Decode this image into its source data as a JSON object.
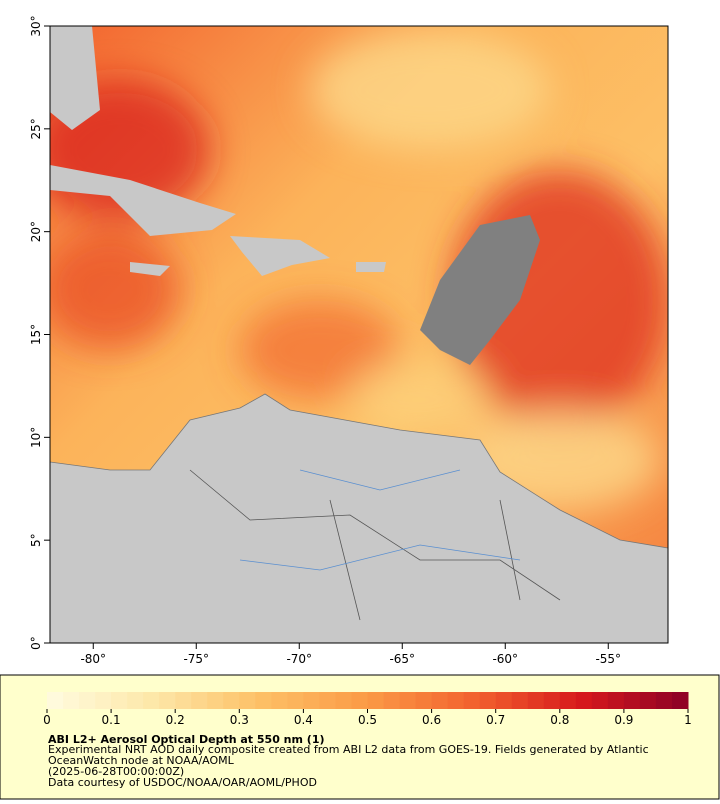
{
  "map": {
    "xlim": [
      -82.1,
      -52.1
    ],
    "ylim": [
      0,
      30
    ],
    "xticks": [
      {
        "value": -80,
        "label": "-80°"
      },
      {
        "value": -75,
        "label": "-75°"
      },
      {
        "value": -70,
        "label": "-70°"
      },
      {
        "value": -65,
        "label": "-65°"
      },
      {
        "value": -60,
        "label": "-60°"
      },
      {
        "value": -55,
        "label": "-55°"
      }
    ],
    "yticks": [
      {
        "value": 0,
        "label": "0°"
      },
      {
        "value": 5,
        "label": "5°"
      },
      {
        "value": 10,
        "label": "10°"
      },
      {
        "value": 15,
        "label": "15°"
      },
      {
        "value": 20,
        "label": "20°"
      },
      {
        "value": 25,
        "label": "25°"
      },
      {
        "value": 30,
        "label": "30°"
      }
    ]
  },
  "colorbar": {
    "lim": [
      0,
      1
    ],
    "ticks": [
      0,
      0.1,
      0.2,
      0.3,
      0.4,
      0.5,
      0.6,
      0.7,
      0.8,
      0.9,
      1
    ],
    "colors": [
      "#fffbe0",
      "#fde7a8",
      "#fdc066",
      "#fb9a46",
      "#f2622e",
      "#d7191c",
      "#8b0026"
    ]
  },
  "caption": {
    "title": "ABI L2+ Aerosol Optical Depth at 550 nm (1)",
    "lines": [
      "Experimental NRT AOD daily composite created from ABI L2 data from GOES-19. Fields generated by Atlantic",
      "OceanWatch node at NOAA/AOML",
      "(2025-06-28T00:00:00Z)",
      "Data courtesy of USDOC/NOAA/OAR/AOML/PHOD"
    ]
  }
}
